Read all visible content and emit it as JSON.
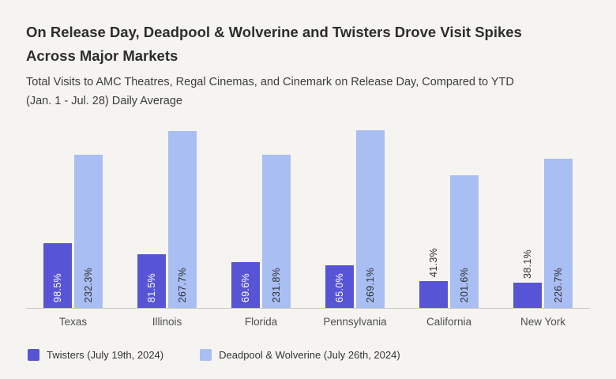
{
  "page": {
    "background_color": "#f5f4f1"
  },
  "header": {
    "title_line1": "On Release Day, Deadpool & Wolverine and Twisters Drove Visit Spikes",
    "title_line2": "Across Major Markets",
    "subtitle_line1": "Total Visits to AMC Theatres, Regal Cinemas, and Cinemark on Release Day, Compared to YTD",
    "subtitle_line2": "(Jan. 1 - Jul. 28) Daily Average"
  },
  "chart_data": {
    "type": "bar",
    "categories": [
      "Texas",
      "Illinois",
      "Florida",
      "Pennsylvania",
      "California",
      "New York"
    ],
    "series": [
      {
        "name": "Twisters (July 19th, 2024)",
        "slug": "twisters",
        "color": "#5755d5",
        "label_color_inside": "#ffffff",
        "values": [
          98.5,
          81.5,
          69.6,
          65.0,
          41.3,
          38.1
        ]
      },
      {
        "name": "Deadpool & Wolverine (July 26th, 2024)",
        "slug": "deadpool-wolverine",
        "color": "#a9bef2",
        "label_color_inside": "#2e2e2e",
        "values": [
          232.3,
          267.7,
          231.8,
          269.1,
          201.6,
          226.7
        ]
      }
    ],
    "value_suffix": "%",
    "value_decimals": 1,
    "ylim": [
      0,
      280
    ],
    "grid": false,
    "legend_position": "bottom",
    "label_color_above": "#2e2e2e",
    "baseline_color": "#c9c8c4"
  }
}
